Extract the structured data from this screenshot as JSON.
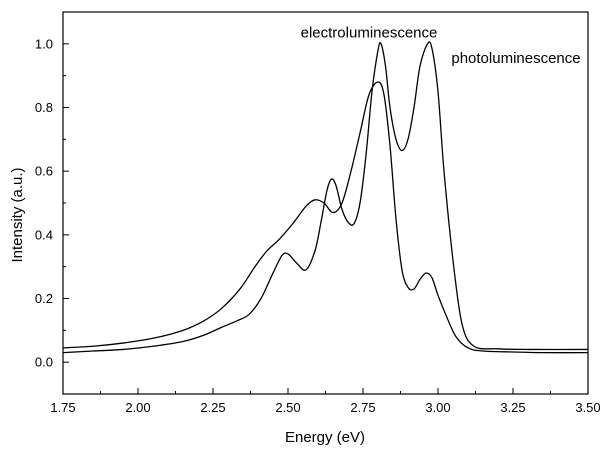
{
  "chart_data": {
    "type": "line",
    "title": "",
    "xlabel": "Energy (eV)",
    "ylabel": "Intensity (a.u.)",
    "xlim": [
      1.75,
      3.5
    ],
    "ylim": [
      -0.1,
      1.1
    ],
    "grid": false,
    "x_ticks": [
      "1.75",
      "2.00",
      "2.25",
      "2.50",
      "2.75",
      "3.00",
      "3.25",
      "3.50"
    ],
    "y_ticks": [
      "0.0",
      "0.2",
      "0.4",
      "0.6",
      "0.8",
      "1.0"
    ],
    "series": [
      {
        "name": "photoluminescence",
        "points": [
          [
            1.75,
            0.03
          ],
          [
            1.85,
            0.035
          ],
          [
            1.95,
            0.04
          ],
          [
            2.05,
            0.05
          ],
          [
            2.15,
            0.065
          ],
          [
            2.22,
            0.085
          ],
          [
            2.28,
            0.11
          ],
          [
            2.33,
            0.13
          ],
          [
            2.37,
            0.15
          ],
          [
            2.41,
            0.2
          ],
          [
            2.45,
            0.28
          ],
          [
            2.48,
            0.335
          ],
          [
            2.5,
            0.34
          ],
          [
            2.53,
            0.31
          ],
          [
            2.56,
            0.29
          ],
          [
            2.59,
            0.35
          ],
          [
            2.61,
            0.44
          ],
          [
            2.63,
            0.54
          ],
          [
            2.645,
            0.575
          ],
          [
            2.66,
            0.555
          ],
          [
            2.68,
            0.48
          ],
          [
            2.7,
            0.44
          ],
          [
            2.72,
            0.435
          ],
          [
            2.74,
            0.5
          ],
          [
            2.76,
            0.65
          ],
          [
            2.78,
            0.85
          ],
          [
            2.8,
            0.98
          ],
          [
            2.81,
            1.0
          ],
          [
            2.825,
            0.93
          ],
          [
            2.84,
            0.8
          ],
          [
            2.86,
            0.7
          ],
          [
            2.88,
            0.665
          ],
          [
            2.9,
            0.7
          ],
          [
            2.92,
            0.8
          ],
          [
            2.94,
            0.93
          ],
          [
            2.965,
            1.0
          ],
          [
            2.98,
            0.985
          ],
          [
            3.0,
            0.85
          ],
          [
            3.02,
            0.6
          ],
          [
            3.05,
            0.32
          ],
          [
            3.08,
            0.12
          ],
          [
            3.12,
            0.05
          ],
          [
            3.2,
            0.042
          ],
          [
            3.3,
            0.04
          ],
          [
            3.5,
            0.04
          ]
        ]
      },
      {
        "name": "electroluminescence",
        "points": [
          [
            1.75,
            0.045
          ],
          [
            1.85,
            0.05
          ],
          [
            1.95,
            0.06
          ],
          [
            2.05,
            0.075
          ],
          [
            2.15,
            0.1
          ],
          [
            2.22,
            0.13
          ],
          [
            2.28,
            0.17
          ],
          [
            2.34,
            0.23
          ],
          [
            2.39,
            0.3
          ],
          [
            2.43,
            0.35
          ],
          [
            2.47,
            0.385
          ],
          [
            2.52,
            0.44
          ],
          [
            2.56,
            0.49
          ],
          [
            2.59,
            0.51
          ],
          [
            2.62,
            0.5
          ],
          [
            2.65,
            0.47
          ],
          [
            2.68,
            0.5
          ],
          [
            2.71,
            0.6
          ],
          [
            2.74,
            0.72
          ],
          [
            2.77,
            0.84
          ],
          [
            2.8,
            0.88
          ],
          [
            2.82,
            0.84
          ],
          [
            2.84,
            0.68
          ],
          [
            2.86,
            0.45
          ],
          [
            2.88,
            0.29
          ],
          [
            2.9,
            0.235
          ],
          [
            2.92,
            0.23
          ],
          [
            2.94,
            0.26
          ],
          [
            2.96,
            0.28
          ],
          [
            2.98,
            0.265
          ],
          [
            3.0,
            0.21
          ],
          [
            3.03,
            0.14
          ],
          [
            3.06,
            0.08
          ],
          [
            3.1,
            0.045
          ],
          [
            3.15,
            0.035
          ],
          [
            3.25,
            0.032
          ],
          [
            3.35,
            0.03
          ],
          [
            3.5,
            0.03
          ]
        ]
      }
    ],
    "annotations": [
      {
        "text": "electroluminescence",
        "x": 2.77,
        "y": 1.02
      },
      {
        "text": "photoluminescence",
        "x": 3.26,
        "y": 0.94
      }
    ],
    "line_color": "#000000"
  }
}
